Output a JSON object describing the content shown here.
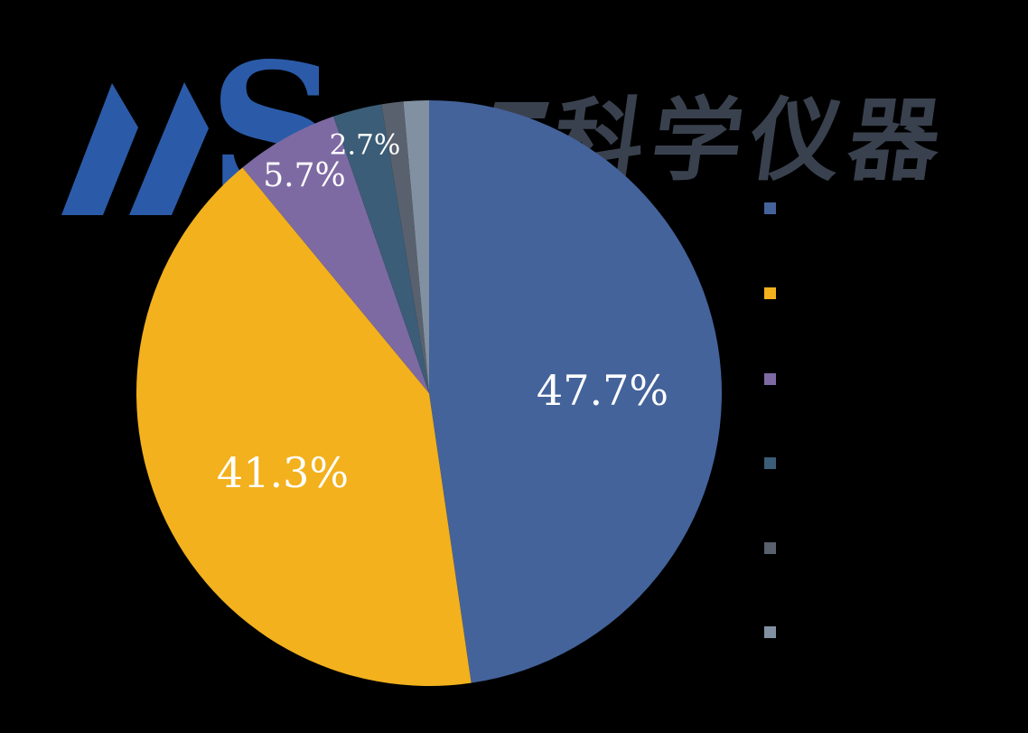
{
  "background_color": "#000000",
  "logo": {
    "letters": "MS",
    "s_glyph": "S",
    "blue": "#2B5BA8",
    "brand_text": "科学仪器",
    "brand_color": "#3A414E"
  },
  "chart_data": {
    "type": "pie",
    "title": "",
    "start_angle": "12 o'clock, clockwise",
    "legend_position": "right",
    "label_color": "#FFFFFF",
    "series": [
      {
        "label": "47.7%",
        "value": 47.7,
        "color": "#44639B"
      },
      {
        "label": "41.3%",
        "value": 41.3,
        "color": "#F2B11D"
      },
      {
        "label": "5.7%",
        "value": 5.7,
        "color": "#7E6AA3"
      },
      {
        "label": "2.7%",
        "value": 2.7,
        "color": "#3B5D77"
      },
      {
        "label": "",
        "value": 1.2,
        "color": "#59616E"
      },
      {
        "label": "",
        "value": 1.4,
        "color": "#8291A2"
      }
    ]
  },
  "legend": {
    "labels_visible": false
  }
}
